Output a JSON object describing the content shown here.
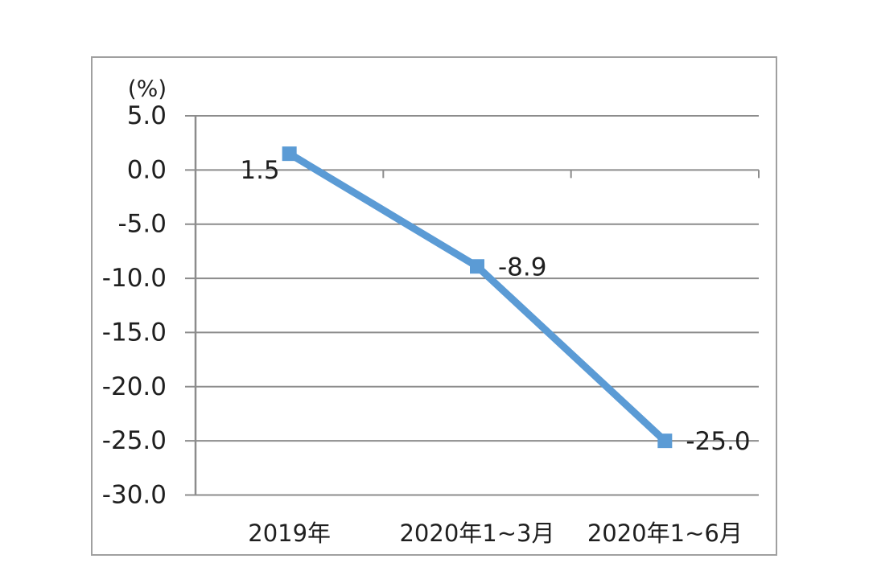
{
  "page": {
    "background_color": "#ffffff"
  },
  "chart_data": {
    "type": "line",
    "title": "",
    "unit_label": "(%)",
    "xlabel": "",
    "ylabel": "(%)",
    "categories": [
      "2019年",
      "2020年1~3月",
      "2020年1~6月"
    ],
    "series": [
      {
        "name": "",
        "values": [
          1.5,
          -8.9,
          -25.0
        ]
      }
    ],
    "data_labels": [
      "1.5",
      "-8.9",
      "-25.0"
    ],
    "data_label_positions": [
      "left-below",
      "right",
      "right"
    ],
    "y_ticks": [
      {
        "value": 5,
        "label": "5.0"
      },
      {
        "value": 0,
        "label": "0.0"
      },
      {
        "value": -5,
        "label": "-5.0"
      },
      {
        "value": -10,
        "label": "-10.0"
      },
      {
        "value": -15,
        "label": "-15.0"
      },
      {
        "value": -20,
        "label": "-20.0"
      },
      {
        "value": -25,
        "label": "-25.0"
      },
      {
        "value": -30,
        "label": "-30.0"
      }
    ],
    "ylim": [
      -30,
      5
    ],
    "grid": true,
    "legend": "none",
    "marker": "square",
    "colors": {
      "line": "#5b9bd5",
      "marker": "#5b9bd5",
      "grid": "#8c8c8c",
      "axis": "#8c8c8c",
      "frame": "#a0a0a0",
      "text": "#1f1f1f"
    }
  }
}
